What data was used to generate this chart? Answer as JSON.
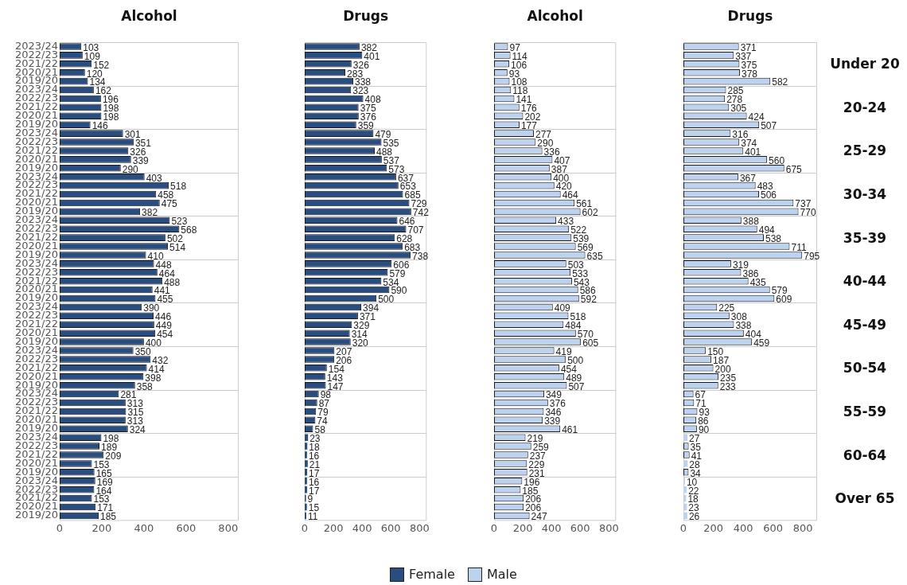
{
  "chart_data": [
    {
      "type": "bar",
      "orientation": "horizontal",
      "title": "Alcohol",
      "data_labels": true,
      "legend": "bottom",
      "categories": [
        "2023/24",
        "2022/23",
        "2021/22",
        "2020/21",
        "2019/20",
        "2023/24",
        "2022/23",
        "2021/22",
        "2020/21",
        "2019/20",
        "2023/24",
        "2022/23",
        "2021/22",
        "2020/21",
        "2019/20",
        "2023/24",
        "2022/23",
        "2021/22",
        "2020/21",
        "2019/20",
        "2023/24",
        "2022/23",
        "2021/22",
        "2020/21",
        "2019/20",
        "2023/24",
        "2022/23",
        "2021/22",
        "2020/21",
        "2019/20",
        "2023/24",
        "2022/23",
        "2021/22",
        "2020/21",
        "2019/20",
        "2023/24",
        "2022/23",
        "2021/22",
        "2020/21",
        "2019/20",
        "2023/24",
        "2022/23",
        "2021/22",
        "2020/21",
        "2019/20",
        "2023/24",
        "2022/23",
        "2021/22",
        "2020/21",
        "2019/20",
        "2023/24",
        "2022/23",
        "2021/22",
        "2020/21",
        "2019/20"
      ],
      "xlim": [
        0,
        850
      ],
      "xticks": [
        0,
        200,
        400,
        600,
        800
      ],
      "series": [
        {
          "name": "Female",
          "color": "#2a4d80",
          "values": [
            103,
            109,
            152,
            120,
            134,
            162,
            196,
            198,
            198,
            146,
            301,
            351,
            326,
            339,
            290,
            403,
            518,
            458,
            475,
            382,
            523,
            568,
            502,
            514,
            410,
            448,
            464,
            488,
            441,
            455,
            390,
            446,
            449,
            454,
            400,
            350,
            432,
            414,
            398,
            358,
            281,
            313,
            315,
            313,
            324,
            198,
            189,
            209,
            153,
            165,
            169,
            164,
            153,
            171,
            185
          ]
        }
      ]
    },
    {
      "type": "bar",
      "orientation": "horizontal",
      "title": "Drugs",
      "data_labels": true,
      "tick_labels": "x",
      "categories": [
        "2023/24",
        "2022/23",
        "2021/22",
        "2020/21",
        "2019/20",
        "2023/24",
        "2022/23",
        "2021/22",
        "2020/21",
        "2019/20",
        "2023/24",
        "2022/23",
        "2021/22",
        "2020/21",
        "2019/20",
        "2023/24",
        "2022/23",
        "2021/22",
        "2020/21",
        "2019/20",
        "2023/24",
        "2022/23",
        "2021/22",
        "2020/21",
        "2019/20",
        "2023/24",
        "2022/23",
        "2021/22",
        "2020/21",
        "2019/20",
        "2023/24",
        "2022/23",
        "2021/22",
        "2020/21",
        "2019/20",
        "2023/24",
        "2022/23",
        "2021/22",
        "2020/21",
        "2019/20",
        "2023/24",
        "2022/23",
        "2021/22",
        "2020/21",
        "2019/20",
        "2023/24",
        "2022/23",
        "2021/22",
        "2020/21",
        "2019/20",
        "2023/24",
        "2022/23",
        "2021/22",
        "2020/21",
        "2019/20"
      ],
      "xlim": [
        0,
        850
      ],
      "xticks": [
        0,
        200,
        400,
        600,
        800
      ],
      "series": [
        {
          "color": "#2a4d80",
          "values": [
            382,
            401,
            326,
            283,
            338,
            323,
            408,
            375,
            376,
            359,
            479,
            535,
            488,
            537,
            573,
            637,
            653,
            685,
            729,
            742,
            646,
            707,
            628,
            683,
            738,
            606,
            579,
            534,
            590,
            500,
            394,
            371,
            329,
            314,
            320,
            207,
            206,
            154,
            143,
            147,
            98,
            87,
            79,
            74,
            58,
            23,
            18,
            16,
            21,
            17,
            16,
            17,
            9,
            15,
            11
          ]
        }
      ]
    },
    {
      "type": "bar",
      "orientation": "horizontal",
      "title": "Alcohol",
      "data_labels": true,
      "tick_labels": "x",
      "legend": "bottom",
      "categories": [
        "2023/24",
        "2022/23",
        "2021/22",
        "2020/21",
        "2019/20",
        "2023/24",
        "2022/23",
        "2021/22",
        "2020/21",
        "2019/20",
        "2023/24",
        "2022/23",
        "2021/22",
        "2020/21",
        "2019/20",
        "2023/24",
        "2022/23",
        "2021/22",
        "2020/21",
        "2019/20",
        "2023/24",
        "2022/23",
        "2021/22",
        "2020/21",
        "2019/20",
        "2023/24",
        "2022/23",
        "2021/22",
        "2020/21",
        "2019/20",
        "2023/24",
        "2022/23",
        "2021/22",
        "2020/21",
        "2019/20",
        "2023/24",
        "2022/23",
        "2021/22",
        "2020/21",
        "2019/20",
        "2023/24",
        "2022/23",
        "2021/22",
        "2020/21",
        "2019/20",
        "2023/24",
        "2022/23",
        "2021/22",
        "2020/21",
        "2019/20",
        "2023/24",
        "2022/23",
        "2021/22",
        "2020/21",
        "2019/20"
      ],
      "xlim": [
        0,
        850
      ],
      "xticks": [
        0,
        200,
        400,
        600,
        800
      ],
      "series": [
        {
          "name": "Male",
          "color": "#bcd2ee",
          "values": [
            97,
            114,
            106,
            93,
            108,
            118,
            141,
            176,
            202,
            177,
            277,
            290,
            336,
            407,
            387,
            400,
            420,
            464,
            561,
            602,
            433,
            522,
            539,
            569,
            635,
            503,
            533,
            543,
            586,
            592,
            409,
            518,
            484,
            570,
            605,
            419,
            500,
            454,
            489,
            507,
            349,
            376,
            346,
            339,
            461,
            219,
            259,
            237,
            229,
            231,
            196,
            185,
            206,
            206,
            247
          ]
        }
      ]
    },
    {
      "type": "bar",
      "orientation": "horizontal",
      "title": "Drugs",
      "data_labels": true,
      "tick_labels": "x",
      "categories": [
        "2023/24",
        "2022/23",
        "2021/22",
        "2020/21",
        "2019/20",
        "2023/24",
        "2022/23",
        "2021/22",
        "2020/21",
        "2019/20",
        "2023/24",
        "2022/23",
        "2021/22",
        "2020/21",
        "2019/20",
        "2023/24",
        "2022/23",
        "2021/22",
        "2020/21",
        "2019/20",
        "2023/24",
        "2022/23",
        "2021/22",
        "2020/21",
        "2019/20",
        "2023/24",
        "2022/23",
        "2021/22",
        "2020/21",
        "2019/20",
        "2023/24",
        "2022/23",
        "2021/22",
        "2020/21",
        "2019/20",
        "2023/24",
        "2022/23",
        "2021/22",
        "2020/21",
        "2019/20",
        "2023/24",
        "2022/23",
        "2021/22",
        "2020/21",
        "2019/20",
        "2023/24",
        "2022/23",
        "2021/22",
        "2020/21",
        "2019/20",
        "2023/24",
        "2022/23",
        "2021/22",
        "2020/21",
        "2019/20"
      ],
      "xlim": [
        0,
        895
      ],
      "xticks": [
        0,
        200,
        400,
        600,
        800
      ],
      "annotations": [
        "Under 20",
        "20-24",
        "25-29",
        "30-34",
        "35-39",
        "40-44",
        "45-49",
        "50-54",
        "55-59",
        "60-64",
        "Over 65"
      ],
      "series": [
        {
          "color": "#bcd2ee",
          "values": [
            371,
            337,
            375,
            378,
            582,
            285,
            278,
            305,
            424,
            507,
            316,
            374,
            401,
            560,
            675,
            367,
            483,
            506,
            737,
            770,
            388,
            494,
            538,
            711,
            795,
            319,
            386,
            435,
            579,
            609,
            225,
            308,
            338,
            404,
            459,
            150,
            187,
            200,
            235,
            233,
            67,
            71,
            93,
            86,
            90,
            27,
            35,
            41,
            28,
            34,
            10,
            22,
            18,
            23,
            26
          ]
        }
      ]
    }
  ]
}
